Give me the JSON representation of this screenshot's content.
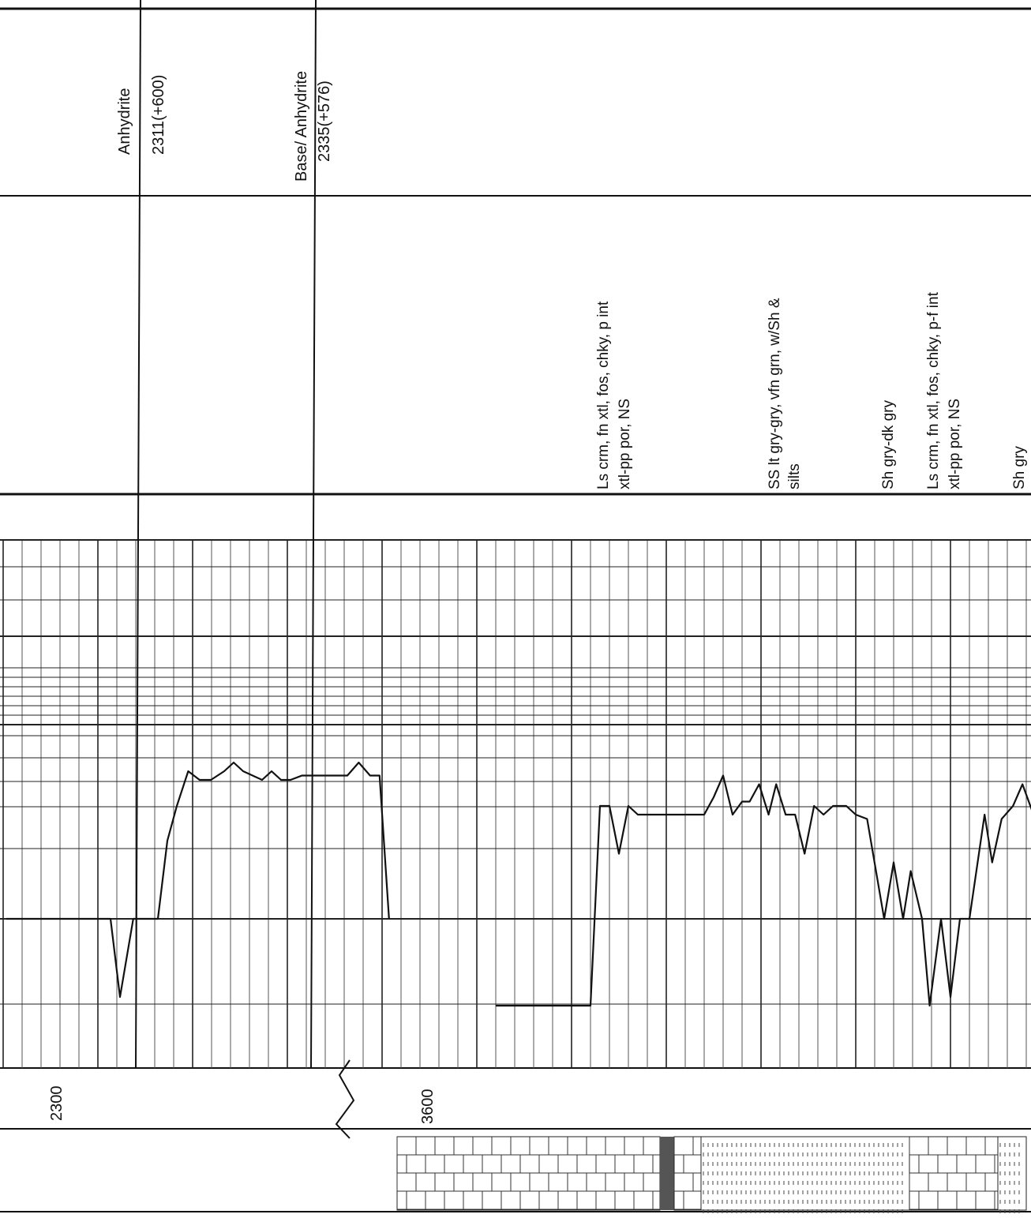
{
  "formation_tops": [
    {
      "name": "Anhydrite",
      "value": "2311(+600)"
    },
    {
      "name": "Base/ Anhydrite",
      "value": "2335(+576)"
    }
  ],
  "lithology_descriptions": [
    {
      "line1": "Ls crm, fn xtl, fos, chky, p int",
      "line2": "xtl-pp por, NS"
    },
    {
      "line1": "SS lt gry-gry, vfn grn, w/Sh &",
      "line2": "silts"
    },
    {
      "line1": "Sh gry-dk gry",
      "line2": ""
    },
    {
      "line1": "Ls crm, fn xtl, fos, chky, p-f int",
      "line2": "xtl-pp por, NS"
    },
    {
      "line1": "Sh gry",
      "line2": ""
    }
  ],
  "depth_labels": [
    "2300",
    "3600"
  ],
  "chart_data": {
    "type": "line",
    "title": "",
    "xlabel": "",
    "ylabel": "",
    "segments": [
      {
        "depth_start": 2300,
        "points": [
          [
            0,
            0
          ],
          [
            5.5,
            0
          ],
          [
            6,
            -1.8
          ],
          [
            6.7,
            0
          ],
          [
            8,
            0
          ],
          [
            8.5,
            1.8
          ],
          [
            9,
            2.6
          ],
          [
            9.6,
            3.4
          ],
          [
            10.2,
            3.2
          ],
          [
            10.8,
            3.2
          ],
          [
            11.5,
            3.4
          ],
          [
            12,
            3.6
          ],
          [
            12.5,
            3.4
          ],
          [
            13,
            3.3
          ],
          [
            13.5,
            3.2
          ],
          [
            14,
            3.4
          ],
          [
            14.5,
            3.2
          ],
          [
            15,
            3.2
          ],
          [
            15.6,
            3.3
          ],
          [
            17,
            3.3
          ],
          [
            18,
            3.3
          ],
          [
            18.6,
            3.6
          ],
          [
            19.2,
            3.3
          ],
          [
            19.7,
            3.3
          ],
          [
            20.2,
            0
          ]
        ]
      },
      {
        "depth_start": 3600,
        "points": [
          [
            0,
            -2
          ],
          [
            5,
            -2
          ],
          [
            5.5,
            2.6
          ],
          [
            6,
            2.6
          ],
          [
            6.5,
            1.5
          ],
          [
            7,
            2.6
          ],
          [
            7.5,
            2.4
          ],
          [
            11,
            2.4
          ],
          [
            11.5,
            2.8
          ],
          [
            12,
            3.3
          ],
          [
            12.5,
            2.4
          ],
          [
            13,
            2.7
          ],
          [
            13.4,
            2.7
          ],
          [
            13.9,
            3.1
          ],
          [
            14.4,
            2.4
          ],
          [
            14.8,
            3.1
          ],
          [
            15.3,
            2.4
          ],
          [
            15.8,
            2.4
          ],
          [
            16.3,
            1.5
          ],
          [
            16.8,
            2.6
          ],
          [
            17.3,
            2.4
          ],
          [
            17.8,
            2.6
          ],
          [
            18.5,
            2.6
          ],
          [
            19,
            2.4
          ],
          [
            19.6,
            2.3
          ],
          [
            20.5,
            0
          ],
          [
            21,
            1.3
          ],
          [
            21.5,
            0
          ],
          [
            21.9,
            1.1
          ],
          [
            22.5,
            0
          ],
          [
            22.9,
            -2
          ],
          [
            23.5,
            0
          ],
          [
            24,
            -1.8
          ],
          [
            24.5,
            0
          ],
          [
            25,
            0
          ],
          [
            25.8,
            2.4
          ],
          [
            26.2,
            1.3
          ],
          [
            26.7,
            2.3
          ],
          [
            27.3,
            2.6
          ],
          [
            27.8,
            3.1
          ],
          [
            28.3,
            2.5
          ],
          [
            29,
            2.4
          ],
          [
            29.6,
            2.4
          ],
          [
            30.2,
            3
          ],
          [
            30.7,
            2.6
          ],
          [
            31.1,
            3.2
          ],
          [
            31.6,
            2.6
          ],
          [
            32.2,
            3
          ],
          [
            33,
            1.4
          ],
          [
            33.6,
            2.3
          ],
          [
            34.2,
            2.9
          ],
          [
            34.8,
            3
          ],
          [
            35.4,
            3.3
          ],
          [
            36,
            3.3
          ],
          [
            36.6,
            2.7
          ],
          [
            37,
            2.7
          ],
          [
            37.5,
            1.7
          ],
          [
            38,
            2.3
          ]
        ]
      }
    ]
  }
}
